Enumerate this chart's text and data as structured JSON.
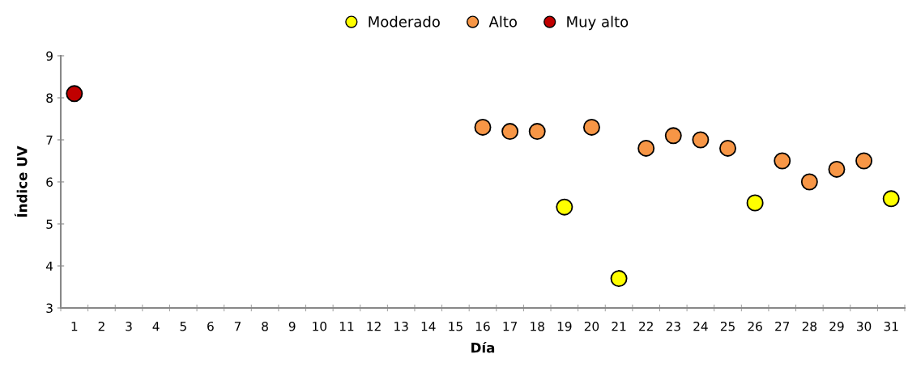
{
  "chart_data": {
    "type": "scatter",
    "xlabel": "Día",
    "ylabel": "Índice UV",
    "categories": [
      "1",
      "2",
      "3",
      "4",
      "5",
      "6",
      "7",
      "8",
      "9",
      "10",
      "11",
      "12",
      "13",
      "14",
      "15",
      "16",
      "17",
      "18",
      "19",
      "20",
      "21",
      "22",
      "23",
      "24",
      "25",
      "26",
      "27",
      "28",
      "29",
      "30",
      "31"
    ],
    "series": [
      {
        "name": "Moderado",
        "color": "#ffff00",
        "values": [
          null,
          null,
          null,
          null,
          null,
          null,
          null,
          null,
          null,
          null,
          null,
          null,
          null,
          null,
          null,
          null,
          null,
          null,
          5.4,
          null,
          3.7,
          null,
          null,
          null,
          null,
          5.5,
          null,
          null,
          null,
          null,
          5.6
        ]
      },
      {
        "name": "Alto",
        "color": "#f79646",
        "values": [
          null,
          null,
          null,
          null,
          null,
          null,
          null,
          null,
          null,
          null,
          null,
          null,
          null,
          null,
          null,
          7.3,
          7.2,
          7.2,
          null,
          7.3,
          null,
          6.8,
          7.1,
          7.0,
          6.8,
          null,
          6.5,
          6.0,
          6.3,
          6.5,
          null
        ]
      },
      {
        "name": "Muy alto",
        "color": "#c00000",
        "values": [
          8.1,
          null,
          null,
          null,
          null,
          null,
          null,
          null,
          null,
          null,
          null,
          null,
          null,
          null,
          null,
          null,
          null,
          null,
          null,
          null,
          null,
          null,
          null,
          null,
          null,
          null,
          null,
          null,
          null,
          null,
          null
        ]
      }
    ],
    "ylim": [
      3,
      9
    ],
    "yticks": [
      3,
      4,
      5,
      6,
      7,
      8,
      9
    ],
    "marker": "circle",
    "legend": "top",
    "grid": false
  }
}
